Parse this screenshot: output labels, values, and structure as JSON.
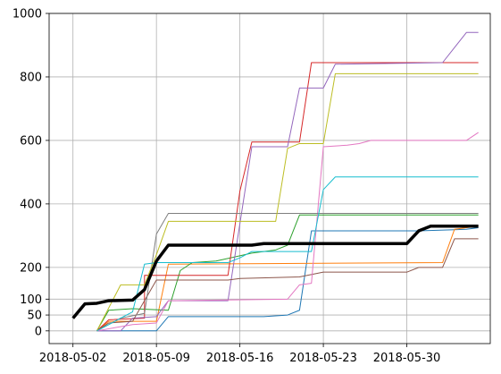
{
  "chart_data": {
    "type": "line",
    "title": "",
    "xlabel": "",
    "ylabel": "",
    "grid": true,
    "x_type": "date",
    "xlim": [
      "2018-04-30",
      "2018-06-06"
    ],
    "ylim": [
      -40,
      1000
    ],
    "x_ticks": [
      {
        "date": "2018-05-02",
        "label": "2018-05-02"
      },
      {
        "date": "2018-05-09",
        "label": "2018-05-09"
      },
      {
        "date": "2018-05-16",
        "label": "2018-05-16"
      },
      {
        "date": "2018-05-23",
        "label": "2018-05-23"
      },
      {
        "date": "2018-05-30",
        "label": "2018-05-30"
      }
    ],
    "y_ticks": [
      {
        "value": 0,
        "label": "0"
      },
      {
        "value": 50,
        "label": "50"
      },
      {
        "value": 100,
        "label": "100"
      },
      {
        "value": 200,
        "label": "200"
      },
      {
        "value": 400,
        "label": "400"
      },
      {
        "value": 600,
        "label": "600"
      },
      {
        "value": 800,
        "label": "800"
      },
      {
        "value": 1000,
        "label": "1000"
      }
    ],
    "series": [
      {
        "color": "#1f77b4",
        "width": 1,
        "points": [
          [
            "2018-05-04",
            0
          ],
          [
            "2018-05-09",
            0
          ],
          [
            "2018-05-10",
            45
          ],
          [
            "2018-05-18",
            45
          ],
          [
            "2018-05-20",
            50
          ],
          [
            "2018-05-21",
            65
          ],
          [
            "2018-05-22",
            315
          ],
          [
            "2018-05-31",
            315
          ],
          [
            "2018-06-04",
            320
          ],
          [
            "2018-06-05",
            325
          ]
        ]
      },
      {
        "color": "#ff7f0e",
        "width": 1,
        "points": [
          [
            "2018-05-04",
            0
          ],
          [
            "2018-05-05",
            30
          ],
          [
            "2018-05-09",
            30
          ],
          [
            "2018-05-10",
            210
          ],
          [
            "2018-06-02",
            215
          ],
          [
            "2018-06-03",
            320
          ],
          [
            "2018-06-05",
            330
          ]
        ]
      },
      {
        "color": "#2ca02c",
        "width": 1,
        "points": [
          [
            "2018-05-04",
            0
          ],
          [
            "2018-05-05",
            65
          ],
          [
            "2018-05-07",
            70
          ],
          [
            "2018-05-10",
            65
          ],
          [
            "2018-05-11",
            190
          ],
          [
            "2018-05-12",
            215
          ],
          [
            "2018-05-14",
            220
          ],
          [
            "2018-05-17",
            245
          ],
          [
            "2018-05-19",
            255
          ],
          [
            "2018-05-20",
            270
          ],
          [
            "2018-05-21",
            365
          ],
          [
            "2018-06-05",
            365
          ]
        ]
      },
      {
        "color": "#d62728",
        "width": 1,
        "points": [
          [
            "2018-05-04",
            0
          ],
          [
            "2018-05-05",
            35
          ],
          [
            "2018-05-08",
            40
          ],
          [
            "2018-05-08",
            175
          ],
          [
            "2018-05-15",
            175
          ],
          [
            "2018-05-16",
            440
          ],
          [
            "2018-05-17",
            595
          ],
          [
            "2018-05-21",
            595
          ],
          [
            "2018-05-22",
            845
          ],
          [
            "2018-06-05",
            845
          ]
        ]
      },
      {
        "color": "#9467bd",
        "width": 1,
        "points": [
          [
            "2018-05-04",
            0
          ],
          [
            "2018-05-06",
            0
          ],
          [
            "2018-05-07",
            40
          ],
          [
            "2018-05-09",
            45
          ],
          [
            "2018-05-10",
            95
          ],
          [
            "2018-05-15",
            95
          ],
          [
            "2018-05-17",
            580
          ],
          [
            "2018-05-20",
            580
          ],
          [
            "2018-05-21",
            765
          ],
          [
            "2018-05-23",
            765
          ],
          [
            "2018-05-24",
            840
          ],
          [
            "2018-06-02",
            845
          ],
          [
            "2018-06-04",
            940
          ],
          [
            "2018-06-05",
            940
          ]
        ]
      },
      {
        "color": "#8c564b",
        "width": 1,
        "points": [
          [
            "2018-05-04",
            0
          ],
          [
            "2018-05-05",
            25
          ],
          [
            "2018-05-07",
            30
          ],
          [
            "2018-05-09",
            160
          ],
          [
            "2018-05-15",
            160
          ],
          [
            "2018-05-16",
            165
          ],
          [
            "2018-05-21",
            170
          ],
          [
            "2018-05-23",
            185
          ],
          [
            "2018-05-30",
            185
          ],
          [
            "2018-05-31",
            200
          ],
          [
            "2018-06-02",
            200
          ],
          [
            "2018-06-03",
            290
          ],
          [
            "2018-06-05",
            290
          ]
        ]
      },
      {
        "color": "#e377c2",
        "width": 1,
        "points": [
          [
            "2018-05-04",
            0
          ],
          [
            "2018-05-07",
            20
          ],
          [
            "2018-05-09",
            25
          ],
          [
            "2018-05-10",
            95
          ],
          [
            "2018-05-20",
            100
          ],
          [
            "2018-05-21",
            145
          ],
          [
            "2018-05-22",
            150
          ],
          [
            "2018-05-23",
            580
          ],
          [
            "2018-05-25",
            585
          ],
          [
            "2018-05-26",
            590
          ],
          [
            "2018-05-27",
            600
          ],
          [
            "2018-06-04",
            600
          ],
          [
            "2018-06-05",
            625
          ]
        ]
      },
      {
        "color": "#7f7f7f",
        "width": 1,
        "points": [
          [
            "2018-05-04",
            0
          ],
          [
            "2018-05-06",
            40
          ],
          [
            "2018-05-08",
            55
          ],
          [
            "2018-05-09",
            305
          ],
          [
            "2018-05-10",
            370
          ],
          [
            "2018-06-05",
            370
          ]
        ]
      },
      {
        "color": "#bcbd22",
        "width": 1,
        "points": [
          [
            "2018-05-04",
            0
          ],
          [
            "2018-05-06",
            145
          ],
          [
            "2018-05-08",
            145
          ],
          [
            "2018-05-09",
            240
          ],
          [
            "2018-05-10",
            345
          ],
          [
            "2018-05-19",
            345
          ],
          [
            "2018-05-20",
            575
          ],
          [
            "2018-05-21",
            590
          ],
          [
            "2018-05-23",
            590
          ],
          [
            "2018-05-24",
            810
          ],
          [
            "2018-06-05",
            810
          ]
        ]
      },
      {
        "color": "#17becf",
        "width": 1,
        "points": [
          [
            "2018-05-04",
            0
          ],
          [
            "2018-05-06",
            40
          ],
          [
            "2018-05-07",
            60
          ],
          [
            "2018-05-08",
            210
          ],
          [
            "2018-05-09",
            215
          ],
          [
            "2018-05-15",
            215
          ],
          [
            "2018-05-16",
            230
          ],
          [
            "2018-05-17",
            250
          ],
          [
            "2018-05-22",
            250
          ],
          [
            "2018-05-23",
            445
          ],
          [
            "2018-05-24",
            485
          ],
          [
            "2018-06-05",
            485
          ]
        ]
      },
      {
        "color": "#000000",
        "width": 3.5,
        "points": [
          [
            "2018-05-02",
            40
          ],
          [
            "2018-05-03",
            85
          ],
          [
            "2018-05-04",
            87
          ],
          [
            "2018-05-05",
            95
          ],
          [
            "2018-05-07",
            97
          ],
          [
            "2018-05-08",
            130
          ],
          [
            "2018-05-09",
            220
          ],
          [
            "2018-05-10",
            270
          ],
          [
            "2018-05-17",
            270
          ],
          [
            "2018-05-18",
            275
          ],
          [
            "2018-05-30",
            275
          ],
          [
            "2018-05-31",
            315
          ],
          [
            "2018-06-01",
            330
          ],
          [
            "2018-06-05",
            330
          ]
        ]
      }
    ]
  }
}
